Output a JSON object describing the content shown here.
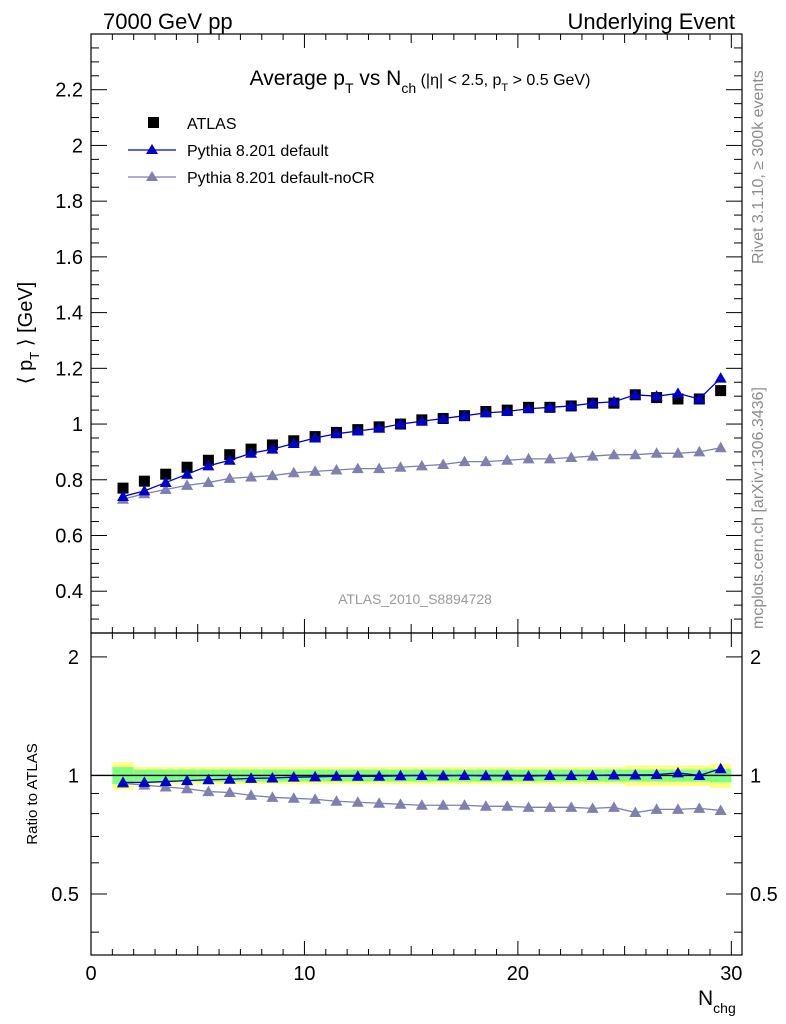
{
  "header": {
    "left": "7000 GeV pp",
    "right": "Underlying Event"
  },
  "side_labels": {
    "top": "Rivet 3.1.10, ≥ 300k events",
    "bottom": "mcplots.cern.ch [arXiv:1306.3436]"
  },
  "title": {
    "main": "Average p",
    "main_sub": "T",
    "vs": " vs N",
    "vs_sub": "ch",
    "cut1": " (|η| < 2.5, p",
    "cut1_sub": "T",
    "cut2": " > 0.5 GeV)"
  },
  "analysis_id": "ATLAS_2010_S8894728",
  "colors": {
    "atlas": "#000000",
    "default": "#0000cc",
    "nocr": "#7f7fb2",
    "band_inner": "#7fff7f",
    "band_outer": "#ffff7f"
  },
  "chart_data": [
    {
      "type": "scatter",
      "panel": "main",
      "ylabel_prefix": "⟨ p",
      "ylabel_sub": "T",
      "ylabel_suffix": " ⟩ [GeV]",
      "xlim": [
        0,
        30.5
      ],
      "ylim": [
        0.25,
        2.4
      ],
      "yticks": [
        0.4,
        0.6,
        0.8,
        1.0,
        1.2,
        1.4,
        1.6,
        1.8,
        2.0,
        2.2
      ],
      "ytick_labels": [
        "0.4",
        "0.6",
        "0.8",
        "1",
        "1.2",
        "1.4",
        "1.6",
        "1.8",
        "2",
        "2.2"
      ],
      "x": [
        1.5,
        2.5,
        3.5,
        4.5,
        5.5,
        6.5,
        7.5,
        8.5,
        9.5,
        10.5,
        11.5,
        12.5,
        13.5,
        14.5,
        15.5,
        16.5,
        17.5,
        18.5,
        19.5,
        20.5,
        21.5,
        22.5,
        23.5,
        24.5,
        25.5,
        26.5,
        27.5,
        28.5,
        29.5
      ],
      "series": [
        {
          "name": "ATLAS",
          "marker": "square",
          "values": [
            0.77,
            0.795,
            0.82,
            0.845,
            0.87,
            0.89,
            0.91,
            0.925,
            0.94,
            0.955,
            0.97,
            0.98,
            0.99,
            1.0,
            1.015,
            1.02,
            1.03,
            1.045,
            1.05,
            1.06,
            1.06,
            1.065,
            1.075,
            1.075,
            1.105,
            1.095,
            1.09,
            1.09,
            1.12
          ]
        },
        {
          "name": "Pythia 8.201 default",
          "marker": "triangle",
          "values": [
            0.74,
            0.76,
            0.79,
            0.82,
            0.85,
            0.87,
            0.895,
            0.91,
            0.93,
            0.95,
            0.965,
            0.975,
            0.985,
            1.0,
            1.01,
            1.02,
            1.03,
            1.04,
            1.045,
            1.055,
            1.06,
            1.065,
            1.075,
            1.08,
            1.105,
            1.1,
            1.11,
            1.09,
            1.165
          ]
        },
        {
          "name": "Pythia 8.201 default-noCR",
          "marker": "triangle",
          "values": [
            0.73,
            0.75,
            0.765,
            0.78,
            0.79,
            0.805,
            0.81,
            0.815,
            0.825,
            0.83,
            0.835,
            0.84,
            0.84,
            0.845,
            0.85,
            0.855,
            0.865,
            0.865,
            0.87,
            0.875,
            0.875,
            0.88,
            0.885,
            0.89,
            0.89,
            0.895,
            0.895,
            0.9,
            0.915
          ]
        }
      ]
    },
    {
      "type": "scatter",
      "panel": "ratio",
      "ylabel": "Ratio to ATLAS",
      "xlabel": "N",
      "xlabel_sub": "chg",
      "xlim": [
        0,
        30.5
      ],
      "ylim": [
        0.35,
        2.3
      ],
      "log_y": true,
      "yticks": [
        0.5,
        1,
        2
      ],
      "ytick_labels": [
        "0.5",
        "1",
        "2"
      ],
      "xticks": [
        0,
        10,
        20,
        30
      ],
      "xtick_labels": [
        "0",
        "10",
        "20",
        "30"
      ],
      "x": [
        1.5,
        2.5,
        3.5,
        4.5,
        5.5,
        6.5,
        7.5,
        8.5,
        9.5,
        10.5,
        11.5,
        12.5,
        13.5,
        14.5,
        15.5,
        16.5,
        17.5,
        18.5,
        19.5,
        20.5,
        21.5,
        22.5,
        23.5,
        24.5,
        25.5,
        26.5,
        27.5,
        28.5,
        29.5
      ],
      "band_inner_halfwidth": [
        0.05,
        0.035,
        0.035,
        0.035,
        0.035,
        0.035,
        0.035,
        0.035,
        0.035,
        0.035,
        0.035,
        0.035,
        0.035,
        0.035,
        0.035,
        0.035,
        0.035,
        0.035,
        0.035,
        0.035,
        0.035,
        0.035,
        0.035,
        0.035,
        0.035,
        0.035,
        0.035,
        0.035,
        0.04
      ],
      "band_outer_halfwidth": [
        0.08,
        0.05,
        0.05,
        0.05,
        0.05,
        0.05,
        0.05,
        0.05,
        0.05,
        0.05,
        0.05,
        0.05,
        0.05,
        0.05,
        0.05,
        0.05,
        0.05,
        0.05,
        0.05,
        0.05,
        0.05,
        0.05,
        0.05,
        0.05,
        0.06,
        0.06,
        0.06,
        0.06,
        0.07
      ],
      "series": [
        {
          "name": "Pythia 8.201 default",
          "values": [
            0.96,
            0.96,
            0.965,
            0.97,
            0.975,
            0.978,
            0.983,
            0.985,
            0.99,
            0.992,
            0.995,
            0.995,
            0.995,
            0.998,
            1.0,
            0.998,
            1.0,
            0.998,
            0.998,
            0.996,
            1.0,
            1.0,
            1.0,
            1.003,
            1.003,
            1.005,
            1.015,
            1.0,
            1.04
          ]
        },
        {
          "name": "Pythia 8.201 default-noCR",
          "values": [
            0.955,
            0.945,
            0.935,
            0.925,
            0.91,
            0.905,
            0.89,
            0.88,
            0.875,
            0.87,
            0.86,
            0.855,
            0.85,
            0.845,
            0.84,
            0.84,
            0.84,
            0.835,
            0.835,
            0.83,
            0.83,
            0.83,
            0.825,
            0.83,
            0.805,
            0.82,
            0.82,
            0.825,
            0.815
          ]
        }
      ]
    }
  ]
}
